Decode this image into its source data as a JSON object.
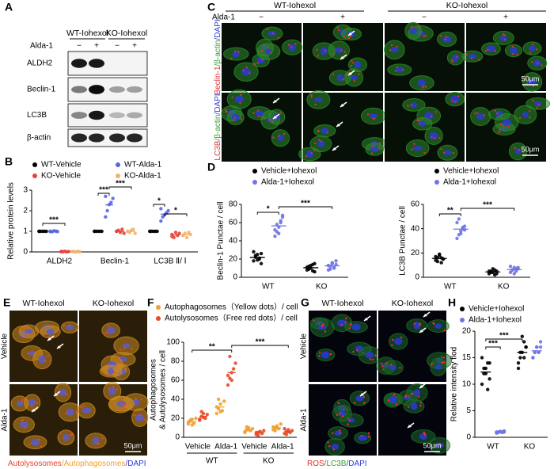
{
  "panel_a": {
    "letter": "A",
    "groups": [
      "WT-Iohexol",
      "KO-Iohexol"
    ],
    "treatment": "Alda-1",
    "signs": [
      "−",
      "+",
      "−",
      "+"
    ],
    "rows": [
      "ALDH2",
      "Beclin-1",
      "LC3B",
      "β-actin"
    ]
  },
  "panel_c": {
    "letter": "C",
    "groups": [
      "WT-Iohexol",
      "KO-Iohexol"
    ],
    "treatment": "Alda-1",
    "signs": [
      "−",
      "+",
      "−",
      "+"
    ],
    "row_labels": [
      [
        "Beclin-1",
        "/β-actin",
        "/DAPI"
      ],
      [
        "LC3B",
        "/β-actin",
        "/DAPI"
      ]
    ],
    "scale_bar": "50μm"
  },
  "panel_e": {
    "letter": "E",
    "columns": [
      "WT-Iohexol",
      "KO-Iohexol"
    ],
    "rows": [
      "Vehicle",
      "Alda-1"
    ],
    "scale_bar": "50μm",
    "caption": [
      "Autolysosomes",
      "/Autophagosomes",
      "/DAPI"
    ]
  },
  "panel_g": {
    "letter": "G",
    "columns": [
      "WT-Iohexol",
      "KO-Iohexol"
    ],
    "rows": [
      "Vehicle",
      "Alda-1"
    ],
    "scale_bar": "50μm",
    "caption": [
      "ROS",
      "/LC3B",
      "/DAPI"
    ]
  },
  "chart_data": [
    {
      "type": "dot",
      "panel": "B",
      "ylabel": [
        "Relative protein levels"
      ],
      "categories": [
        "ALDH2",
        "Beclin-1",
        "LC3B Ⅱ/ Ⅰ"
      ],
      "ylim": [
        0,
        3
      ],
      "yticks": [
        0,
        1,
        2,
        3
      ],
      "annotations": [
        "***",
        "***",
        "***",
        "*",
        "*"
      ],
      "series": [
        {
          "name": "WT-Vehicle",
          "color": "#000000",
          "values": [
            [
              1,
              1,
              1,
              1,
              1,
              1
            ],
            [
              1,
              1,
              1,
              1,
              1,
              1
            ],
            [
              1,
              1,
              1,
              1,
              1,
              1
            ]
          ]
        },
        {
          "name": "WT-Alda-1",
          "color": "#5b63e0",
          "values": [
            [
              1.0,
              0.98,
              1.02,
              1.01,
              0.99,
              1.0
            ],
            [
              1.7,
              2.0,
              2.3,
              2.4,
              2.6,
              2.7
            ],
            [
              1.5,
              1.7,
              1.8,
              1.9,
              2.0,
              2.1
            ]
          ]
        },
        {
          "name": "KO-Vehicle",
          "color": "#e8413c",
          "values": [
            [
              0.02,
              0.01,
              0.03,
              0,
              0.02,
              0.01
            ],
            [
              1.0,
              1.05,
              0.95,
              1.1,
              0.9,
              1.0
            ],
            [
              0.85,
              0.7,
              0.95,
              0.8,
              0.9,
              0.75
            ]
          ]
        },
        {
          "name": "KO-Alda-1",
          "color": "#f2b26b",
          "values": [
            [
              0.02,
              0.01,
              0.0,
              0.03,
              0.01,
              0.02
            ],
            [
              1.0,
              0.95,
              1.05,
              1.1,
              0.9,
              1.0
            ],
            [
              0.8,
              0.9,
              0.7,
              0.95,
              0.85,
              0.8
            ]
          ]
        }
      ]
    },
    {
      "type": "dot",
      "panel": "D",
      "ylabel": [
        "Beclin-1 Punctae / cell"
      ],
      "categories": [
        "WT",
        "KO"
      ],
      "ylim": [
        0,
        80
      ],
      "yticks": [
        0,
        20,
        40,
        60,
        80
      ],
      "annotations": [
        "*",
        "***"
      ],
      "series": [
        {
          "name": "Vehicle+Iohexol",
          "color": "#000000",
          "values": [
            [
              18,
              22,
              25,
              20,
              15,
              28,
              24,
              19,
              21,
              26
            ],
            [
              8,
              12,
              10,
              14,
              6,
              11,
              9,
              13,
              7,
              15
            ]
          ]
        },
        {
          "name": "Alda-1+Iohexol",
          "color": "#6f74e6",
          "values": [
            [
              45,
              50,
              55,
              60,
              66,
              52,
              58,
              48,
              62,
              68
            ],
            [
              8,
              12,
              15,
              10,
              18,
              13,
              9,
              16,
              11,
              14
            ]
          ]
        }
      ]
    },
    {
      "type": "dot",
      "ylabel": [
        "LC3B Punctae / cell"
      ],
      "categories": [
        "WT",
        "KO"
      ],
      "ylim": [
        0,
        60
      ],
      "yticks": [
        0,
        20,
        40,
        60
      ],
      "annotations": [
        "**",
        "***"
      ],
      "series": [
        {
          "name": "Vehicle+Iohexol",
          "color": "#000000",
          "values": [
            [
              14,
              16,
              18,
              12,
              15,
              17,
              13,
              19,
              16,
              15
            ],
            [
              3,
              5,
              4,
              6,
              3,
              5,
              4,
              7,
              2,
              5
            ]
          ]
        },
        {
          "name": "Alda-1+Iohexol",
          "color": "#6f74e6",
          "values": [
            [
              32,
              35,
              38,
              40,
              42,
              45,
              48,
              36,
              41,
              39
            ],
            [
              4,
              6,
              8,
              5,
              7,
              9,
              6,
              3,
              7,
              8
            ]
          ]
        }
      ]
    },
    {
      "type": "dot",
      "panel": "F",
      "ylabel": [
        "Autophagosomes",
        "& Autolysosomes / cell"
      ],
      "categories": [
        "Vehicle",
        "Alda-1",
        "Vehicle",
        "Alda-1"
      ],
      "groups": [
        "WT",
        "KO"
      ],
      "ylim": [
        0,
        100
      ],
      "yticks": [
        0,
        20,
        40,
        60,
        80,
        100
      ],
      "annotations": [
        "**",
        "***"
      ],
      "series": [
        {
          "name": "Autophagosomes（Yellow dots）/ cell",
          "color": "#f0a030",
          "values": [
            [
              14,
              17,
              19,
              15,
              20,
              16,
              18,
              13
            ],
            [
              25,
              30,
              35,
              28,
              38,
              32,
              40,
              27
            ],
            [
              6,
              8,
              10,
              7,
              9,
              5,
              11,
              8
            ],
            [
              8,
              10,
              12,
              9,
              14,
              11,
              7,
              10
            ]
          ]
        },
        {
          "name": "Autolysosomes（Free red dots）/ cell",
          "color": "#e84a2a",
          "values": [
            [
              18,
              22,
              25,
              20,
              24,
              19,
              27,
              21
            ],
            [
              55,
              62,
              68,
              72,
              78,
              65,
              85,
              60
            ],
            [
              3,
              5,
              6,
              4,
              7,
              5,
              2,
              6
            ],
            [
              4,
              6,
              8,
              5,
              7,
              9,
              3,
              6
            ]
          ]
        }
      ]
    },
    {
      "type": "dot",
      "panel": "H",
      "ylabel": [
        "Relative intensity flod"
      ],
      "categories": [
        "WT",
        "KO"
      ],
      "ylim": [
        0,
        20
      ],
      "yticks": [
        0,
        5,
        10,
        15,
        20
      ],
      "annotations": [
        "***",
        "***"
      ],
      "series": [
        {
          "name": "Vehicle+Iohexol",
          "color": "#000000",
          "values": [
            [
              10,
              12,
              13,
              14,
              11,
              15,
              13,
              12,
              9,
              14
            ],
            [
              13,
              15,
              16,
              18,
              17,
              14,
              16,
              19,
              15,
              17
            ]
          ]
        },
        {
          "name": "Alda-1+Iohexol",
          "color": "#6f74e6",
          "values": [
            [
              0.8,
              1,
              1.1,
              0.9,
              1.2,
              1.0,
              0.9,
              1.1,
              1.0,
              1.0
            ],
            [
              15,
              16,
              17,
              16,
              18,
              15,
              16,
              17,
              16,
              17
            ]
          ]
        }
      ]
    }
  ]
}
